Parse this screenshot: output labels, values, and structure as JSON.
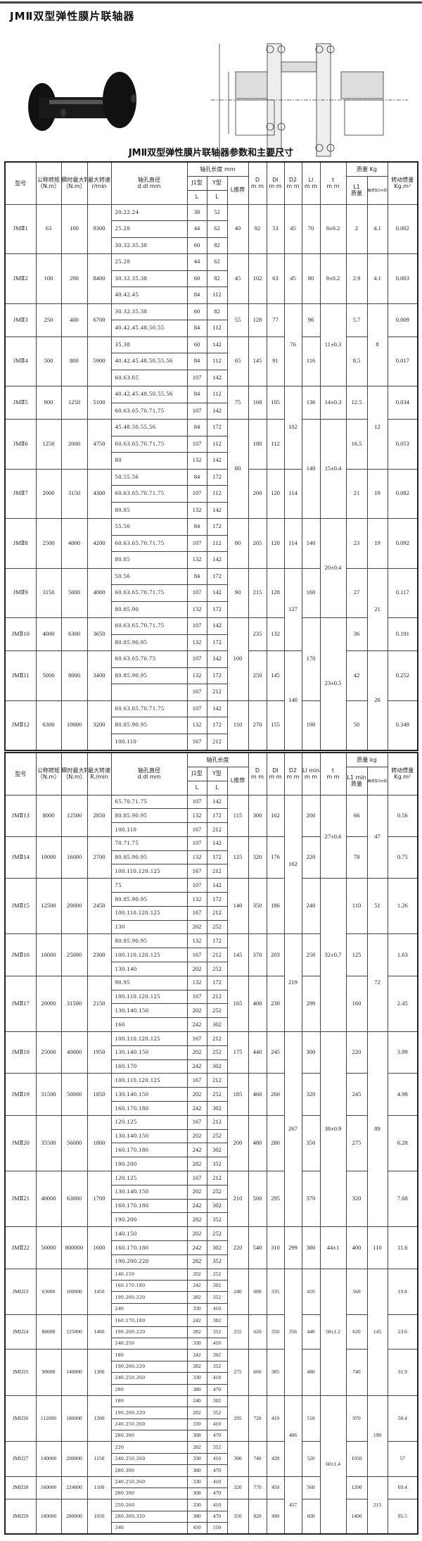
{
  "title": "JMⅡ双型弹性膜片联轴器",
  "subtitle": "JMⅡ双型弹性膜片联轴器参数和主要尺寸",
  "table1": {
    "headers": {
      "model": "型号",
      "torque": "公称转矩",
      "torque_unit": "（N.m）",
      "peak": "瞬时最大转矩",
      "peak_unit": "（N.m）",
      "speed": "最大转速",
      "speed_unit": "r/min",
      "bore": "轴孔直径",
      "bore_unit": "d.dl mm",
      "length": "轴孔长度 mm",
      "j1": "J1型",
      "y": "Y型",
      "l": "L",
      "lrec": "L推荐",
      "D": "D",
      "D1": "Dl",
      "D2": "D2",
      "L1": "Ll",
      "t": "t",
      "mm": "m m",
      "mass": "质量 Kg",
      "mass_l1": "L1",
      "mass_l1b": "质量",
      "mass_per_m": "每增加1m的质量",
      "inertia": "转动惯量",
      "inertia_unit": "Kg.m²"
    },
    "models": [
      {
        "model": "JMⅡ1",
        "torque": "63",
        "peak": "100",
        "speed": "9300",
        "bores": [
          [
            "20.22.24",
            "38",
            "52"
          ],
          [
            "25.28",
            "44",
            "62"
          ],
          [
            "30.32.35.38",
            "60",
            "82"
          ]
        ],
        "L": "40",
        "D": "92",
        "D1": "53",
        "D2": "45",
        "L1": "70",
        "t": "8±0.2",
        "mass": "2",
        "mpm": "4.1",
        "inertia": "0.002"
      },
      {
        "model": "JMⅡ2",
        "torque": "100",
        "peak": "200",
        "speed": "8400",
        "bores": [
          [
            "25.28",
            "44",
            "62"
          ],
          [
            "30.32.35.38",
            "60",
            "82"
          ],
          [
            "40.42.45",
            "84",
            "112"
          ]
        ],
        "L": "45",
        "D": "102",
        "D1": "63",
        "D2": "45",
        "L1": "80",
        "t": "8±0.2",
        "mass": "2.9",
        "mpm": "4.1",
        "inertia": "0.003"
      },
      {
        "model": "JMⅡ3",
        "torque": "250",
        "peak": "400",
        "speed": "6700",
        "bores": [
          [
            "30.32.35.38",
            "60",
            "82"
          ],
          [
            "40.42.45.48.50.55",
            "84",
            "112"
          ]
        ],
        "L": "55",
        "D": "128",
        "D1": "77",
        "D2": "76",
        "L1": "96",
        "t": "11±0.3",
        "mass": "5.7",
        "mpm": "8",
        "inertia": "0.009"
      },
      {
        "model": "JMⅡ4",
        "torque": "500",
        "peak": "800",
        "speed": "5900",
        "bores": [
          [
            "35.38",
            "60",
            "142"
          ],
          [
            "40.42.45.48.50.55.56",
            "84",
            "112"
          ],
          [
            "60.63.65",
            "107",
            "142"
          ]
        ],
        "L": "65",
        "D": "145",
        "D1": "91",
        "D2": null,
        "L1": "116",
        "t": null,
        "mass": "8.5",
        "mpm": null,
        "inertia": "0.017"
      },
      {
        "model": "JMⅡ5",
        "torque": "800",
        "peak": "1250",
        "speed": "5100",
        "bores": [
          [
            "40.42.45.48.50.55.56",
            "84",
            "112"
          ],
          [
            "60.63.65.70.71.75",
            "107",
            "142"
          ]
        ],
        "L": "75",
        "D": "168",
        "D1": "105",
        "D2": "102",
        "L1": "136",
        "t": "14±0.3",
        "mass": "12.5",
        "mpm": "12",
        "inertia": "0.034"
      },
      {
        "model": "JMⅡ6",
        "torque": "1250",
        "peak": "2000",
        "speed": "4750",
        "bores": [
          [
            "45.48.50.55.56",
            "84",
            "172"
          ],
          [
            "60.63.65.70.71.75",
            "107",
            "112"
          ],
          [
            "80",
            "132",
            "142"
          ]
        ],
        "L": "80",
        "D": "180",
        "D1": "112",
        "D2": null,
        "L1": "140",
        "t": "15±0.4",
        "mass": "16.5",
        "mpm": null,
        "inertia": "0.053"
      },
      {
        "model": "JMⅡ7",
        "torque": "2000",
        "peak": "3150",
        "speed": "4300",
        "bores": [
          [
            "50.55.56",
            "84",
            "172"
          ],
          [
            "60.63.65.70.71.75",
            "107",
            "112"
          ],
          [
            "80.85",
            "132",
            "142"
          ]
        ],
        "L": null,
        "D": "200",
        "D1": "120",
        "D2": "114",
        "L1": null,
        "t": null,
        "mass": "21",
        "mpm": "19",
        "inertia": "0.082"
      },
      {
        "model": "JMⅡ8",
        "torque": "2500",
        "peak": "4000",
        "speed": "4200",
        "bores": [
          [
            "55.56",
            "84",
            "172"
          ],
          [
            "60.63.65.70.71.75",
            "107",
            "112"
          ],
          [
            "80.85",
            "132",
            "142"
          ]
        ],
        "L": "80",
        "D": "205",
        "D1": "120",
        "D2": "114",
        "L1": "140",
        "t": "20±0.4",
        "mass": "23",
        "mpm": "19",
        "inertia": "0.092"
      },
      {
        "model": "JMⅡ9",
        "torque": "3150",
        "peak": "5000",
        "speed": "4000",
        "bores": [
          [
            "50.56",
            "84",
            "172"
          ],
          [
            "60.63.65.70.71.75",
            "107",
            "142"
          ],
          [
            "80.85.90",
            "132",
            "172"
          ]
        ],
        "L": "90",
        "D": "215",
        "D1": "128",
        "D2": "127",
        "L1": "160",
        "t": null,
        "mass": "27",
        "mpm": "21",
        "inertia": "0.117"
      },
      {
        "model": "JMⅡ10",
        "torque": "4000",
        "peak": "6300",
        "speed": "3650",
        "bores": [
          [
            "60.63.65.70.71.75",
            "107",
            "142"
          ],
          [
            "80.85.90.95",
            "132",
            "172"
          ]
        ],
        "L": "100",
        "D": "235",
        "D1": "132",
        "D2": null,
        "L1": "170",
        "t": "23±0.5",
        "mass": "36",
        "mpm": null,
        "inertia": "0.191"
      },
      {
        "model": "JMⅡ11",
        "torque": "5000",
        "peak": "8000",
        "speed": "3400",
        "bores": [
          [
            "60.63.65.70.75",
            "107",
            "142"
          ],
          [
            "80.85.90.95",
            "132",
            "172"
          ],
          [
            "",
            "167",
            "212"
          ]
        ],
        "L": null,
        "D": "250",
        "D1": "145",
        "D2": "140",
        "L1": null,
        "t": null,
        "mass": "42",
        "mpm": "26",
        "inertia": "0.252"
      },
      {
        "model": "JMⅡ12",
        "torque": "6300",
        "peak": "10000",
        "speed": "3200",
        "bores": [
          [
            "60.63.65.70.71.75",
            "107",
            "142"
          ],
          [
            "80.85.90.95",
            "132",
            "172"
          ],
          [
            "100.110",
            "167",
            "212"
          ]
        ],
        "L": "110",
        "D": "270",
        "D1": "155",
        "D2": null,
        "L1": "190",
        "t": null,
        "mass": "50",
        "mpm": null,
        "inertia": "0.349"
      }
    ]
  },
  "table2": {
    "headers": {
      "model": "型号",
      "torque": "公称转矩",
      "torque_unit": "（N.m）",
      "peak": "瞬时最大转矩",
      "peak_unit": "（N.m）",
      "speed": "最大转速",
      "speed_unit": "R./min",
      "bore": "轴孔直径",
      "bore_unit": "d.dl mm",
      "length": "轴孔长度",
      "j1": "J1型",
      "y": "Y型",
      "l": "L",
      "lrec": "L推荐",
      "D": "D",
      "D1": "Dl",
      "D2": "D2",
      "L1": "Ll min",
      "t": "t",
      "mm": "m m",
      "mass": "质量 kg",
      "mass_l1": "L1 min",
      "mass_l1b": "质量",
      "mass_per_m": "每增加1m的质量",
      "inertia": "转动惯量",
      "inertia_unit": "Kg.m²"
    },
    "models": [
      {
        "model": "JMⅡ13",
        "torque": "8000",
        "peak": "12500",
        "speed": "2850",
        "bores": [
          [
            "65.70.71.75",
            "107",
            "142"
          ],
          [
            "80.85.90.95",
            "132",
            "172"
          ],
          [
            "100.110",
            "167",
            "212"
          ]
        ],
        "L": "115",
        "D": "300",
        "D1": "162",
        "D2": "162",
        "L1": "200",
        "t": "27±0.6",
        "mass": "66",
        "mpm": "47",
        "inertia": "0.56"
      },
      {
        "model": "JMⅡ14",
        "torque": "10000",
        "peak": "16000",
        "speed": "2700",
        "bores": [
          [
            "70.71.75",
            "107",
            "142"
          ],
          [
            "80.85.90.95",
            "132",
            "172"
          ],
          [
            "100.110.120.125",
            "167",
            "212"
          ]
        ],
        "L": "125",
        "D": "320",
        "D1": "176",
        "D2": null,
        "L1": "220",
        "t": null,
        "mass": "78",
        "mpm": null,
        "inertia": "0.75"
      },
      {
        "model": "JMⅡ15",
        "torque": "12500",
        "peak": "20000",
        "speed": "2450",
        "bores": [
          [
            "75",
            "107",
            "142"
          ],
          [
            "80.85.90.95",
            "132",
            "172"
          ],
          [
            "100.110.120.125",
            "167",
            "212"
          ],
          [
            "130",
            "202",
            "252"
          ]
        ],
        "L": "140",
        "D": "350",
        "D1": "186",
        "D2": null,
        "L1": "240",
        "t": "32±0.7",
        "mass": "110",
        "mpm": "51",
        "inertia": "1.26"
      },
      {
        "model": "JMⅡ16",
        "torque": "16000",
        "peak": "25000",
        "speed": "2300",
        "bores": [
          [
            "80.85.90.95",
            "132",
            "172"
          ],
          [
            "100.110.120.125",
            "167",
            "212"
          ],
          [
            "130.140",
            "202",
            "252"
          ]
        ],
        "L": "145",
        "D": "370",
        "D1": "203",
        "D2": "219",
        "L1": "250",
        "t": null,
        "mass": "125",
        "mpm": "72",
        "inertia": "1.63"
      },
      {
        "model": "JMⅡ17",
        "torque": "20000",
        "peak": "31500",
        "speed": "2150",
        "bores": [
          [
            "90.95",
            "132",
            "172"
          ],
          [
            "100.110.120.125",
            "167",
            "212"
          ],
          [
            "130.140.150",
            "202",
            "252"
          ],
          [
            "160",
            "242",
            "302"
          ]
        ],
        "L": "165",
        "D": "400",
        "D1": "230",
        "D2": null,
        "L1": "290",
        "t": null,
        "mass": "160",
        "mpm": null,
        "inertia": "2.45"
      },
      {
        "model": "JMⅡ18",
        "torque": "25000",
        "peak": "40000",
        "speed": "1950",
        "bores": [
          [
            "100.110.120.125",
            "167",
            "212"
          ],
          [
            "130.140.150",
            "202",
            "252"
          ],
          [
            "160.170",
            "242",
            "302"
          ]
        ],
        "L": "175",
        "D": "440",
        "D1": "245",
        "D2": "267",
        "L1": "300",
        "t": "38±0.9",
        "mass": "220",
        "mpm": "89",
        "inertia": "3.99"
      },
      {
        "model": "JMⅡ19",
        "torque": "31500",
        "peak": "50000",
        "speed": "1850",
        "bores": [
          [
            "100.110.120.125",
            "167",
            "212"
          ],
          [
            "130.140.150",
            "202",
            "252"
          ],
          [
            "160.170.180",
            "242",
            "302"
          ]
        ],
        "L": "185",
        "D": "460",
        "D1": "260",
        "D2": null,
        "L1": "320",
        "t": null,
        "mass": "245",
        "mpm": null,
        "inertia": "4.98"
      },
      {
        "model": "JMⅡ20",
        "torque": "35500",
        "peak": "56000",
        "speed": "1800",
        "bores": [
          [
            "120.125",
            "167",
            "212"
          ],
          [
            "130.140.150",
            "202",
            "252"
          ],
          [
            "160.170.180",
            "242",
            "302"
          ],
          [
            "190.200",
            "282",
            "352"
          ]
        ],
        "L": "200",
        "D": "480",
        "D1": "280",
        "D2": null,
        "L1": "350",
        "t": null,
        "mass": "275",
        "mpm": null,
        "inertia": "6.28"
      },
      {
        "model": "JMⅡ21",
        "torque": "40000",
        "peak": "63000",
        "speed": "1700",
        "bores": [
          [
            "120.125",
            "167",
            "212"
          ],
          [
            "130.140.150",
            "202",
            "252"
          ],
          [
            "160.170.180",
            "242",
            "302"
          ],
          [
            "190.200",
            "282",
            "352"
          ]
        ],
        "L": "210",
        "D": "500",
        "D1": "295",
        "D2": null,
        "L1": "370",
        "t": null,
        "mass": "320",
        "mpm": null,
        "inertia": "7.68"
      },
      {
        "model": "JMⅡ22",
        "torque": "50000",
        "peak": "800000",
        "speed": "1600",
        "bores": [
          [
            "140.150",
            "202",
            "252"
          ],
          [
            "160.170.180",
            "242",
            "302"
          ],
          [
            "190.200.220",
            "282",
            "352"
          ]
        ],
        "L": "220",
        "D": "540",
        "D1": "310",
        "D2": "299",
        "L1": "380",
        "t": "44±1",
        "mass": "400",
        "mpm": "110",
        "inertia": "11.6"
      },
      {
        "model": "JMIJ23",
        "small": true,
        "torque": "63000",
        "peak": "100000",
        "speed": "1450",
        "bores": [
          [
            "140.150",
            "202",
            "252"
          ],
          [
            "160.170.180",
            "242",
            "302"
          ],
          [
            "190.200.220",
            "282",
            "352"
          ],
          [
            "240",
            "330",
            "410"
          ]
        ],
        "L": "240",
        "D": "600",
        "D1": "335",
        "D2": "356",
        "L1": "410",
        "t": "50±1.2",
        "mass": "560",
        "mpm": "145",
        "inertia": "19.8"
      },
      {
        "model": "JMIJ24",
        "small": true,
        "torque": "80000",
        "peak": "125000",
        "speed": "1400",
        "bores": [
          [
            "160.170.180",
            "242",
            "302"
          ],
          [
            "190.200.220",
            "282",
            "352"
          ],
          [
            "240.250",
            "330",
            "410"
          ]
        ],
        "L": "255",
        "D": "620",
        "D1": "350",
        "D2": null,
        "L1": "440",
        "t": null,
        "mass": "620",
        "mpm": null,
        "inertia": "23.6"
      },
      {
        "model": "JMIJ25",
        "small": true,
        "torque": "90000",
        "peak": "140000",
        "speed": "1300",
        "bores": [
          [
            "180",
            "242",
            "302"
          ],
          [
            "190.200.220",
            "282",
            "352"
          ],
          [
            "240.250.260",
            "330",
            "410"
          ],
          [
            "280",
            "380",
            "470"
          ]
        ],
        "L": "275",
        "D": "660",
        "D1": "385",
        "D2": null,
        "L1": "480",
        "t": null,
        "mass": "740",
        "mpm": null,
        "inertia": "31.9"
      },
      {
        "model": "JMIJ26",
        "small": true,
        "torque": "112000",
        "peak": "180000",
        "speed": "1200",
        "bores": [
          [
            "180",
            "240",
            "302"
          ],
          [
            "190.200.220",
            "282",
            "352"
          ],
          [
            "240.250.260",
            "330",
            "410"
          ],
          [
            "280.300",
            "308",
            "470"
          ]
        ],
        "L": "295",
        "D": "720",
        "D1": "410",
        "D2": "406",
        "L1": "510",
        "t": "60±1.4",
        "mass": "970",
        "mpm": "190",
        "inertia": "50.4"
      },
      {
        "model": "JMIJ27",
        "small": true,
        "torque": "140000",
        "peak": "200000",
        "speed": "1150",
        "bores": [
          [
            "220",
            "282",
            "352"
          ],
          [
            "240.250.260",
            "330",
            "410"
          ],
          [
            "280.300",
            "380",
            "470"
          ]
        ],
        "L": "300",
        "D": "740",
        "D1": "420",
        "D2": null,
        "L1": "520",
        "t": null,
        "mass": "1050",
        "mpm": null,
        "inertia": "57"
      },
      {
        "model": "JMIJ28",
        "small": true,
        "torque": "160000",
        "peak": "224000",
        "speed": "1100",
        "bores": [
          [
            "240.250.260",
            "330",
            "410"
          ],
          [
            "280.300",
            "308",
            "470"
          ]
        ],
        "L": "320",
        "D": "770",
        "D1": "450",
        "D2": "457",
        "L1": "560",
        "t": null,
        "mass": "1200",
        "mpm": "215",
        "inertia": "69.4"
      },
      {
        "model": "JMIJ29",
        "small": true,
        "torque": "180000",
        "peak": "280000",
        "speed": "1050",
        "bores": [
          [
            "250.260",
            "330",
            "410"
          ],
          [
            "280.300.320",
            "380",
            "470"
          ],
          [
            "340",
            "450",
            "550"
          ]
        ],
        "L": "350",
        "D": "820",
        "D1": "490",
        "D2": null,
        "L1": "600",
        "t": null,
        "mass": "1400",
        "mpm": null,
        "inertia": "95.5"
      }
    ]
  }
}
